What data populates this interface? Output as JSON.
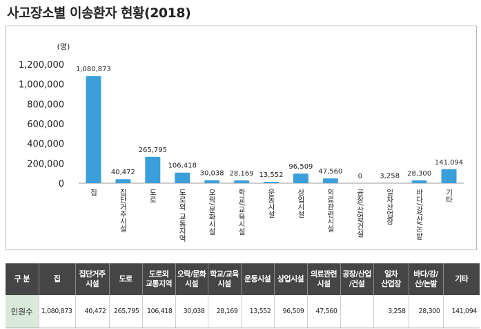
{
  "title": "사고장소별 이송환자 현황(2018)",
  "chart_data": {
    "type": "bar",
    "unit_label": "(명)",
    "categories": [
      "집",
      "집단거주시설",
      "도로",
      "도로외 교통지역",
      "오락/문화시설",
      "학교/교육시설",
      "운동시설",
      "상업시설",
      "의료관련시설",
      "공장/산업/건설",
      "일차산업장",
      "바다/강/산/논밭",
      "기타"
    ],
    "values": [
      1080873,
      40472,
      265795,
      106418,
      30038,
      28169,
      13552,
      96509,
      47560,
      0,
      3258,
      28300,
      141094
    ],
    "value_labels": [
      "1,080,873",
      "40,472",
      "265,795",
      "106,418",
      "30,038",
      "28,169",
      "13,552",
      "96,509",
      "47,560",
      "0",
      "3,258",
      "28,300",
      "141,094"
    ],
    "yticks": [
      "0",
      "200,000",
      "400,000",
      "600,000",
      "800,000",
      "1,000,000",
      "1,200,000"
    ],
    "ylim": [
      0,
      1200000
    ],
    "bar_color": "#3b9fdc",
    "grid": false,
    "legend": "none"
  },
  "table": {
    "header_label": "구 분",
    "row_label": "인원수",
    "columns": [
      "집",
      "집단거주\n시설",
      "도로",
      "도로외\n교통지역",
      "오락/문화\n시설",
      "학교/교육\n시설",
      "운동시설",
      "상업시설",
      "의료관련\n시설",
      "공장/산업\n/건설",
      "일차\n산업장",
      "바다/강/\n산/논밭",
      "기타"
    ],
    "values": [
      "1,080,873",
      "40,472",
      "265,795",
      "106,418",
      "30,038",
      "28,169",
      "13,552",
      "96,509",
      "47,560",
      "",
      "3,258",
      "28,300",
      "141,094"
    ],
    "header_bg": "#454545",
    "row_label_bg": "#d9ead9"
  }
}
